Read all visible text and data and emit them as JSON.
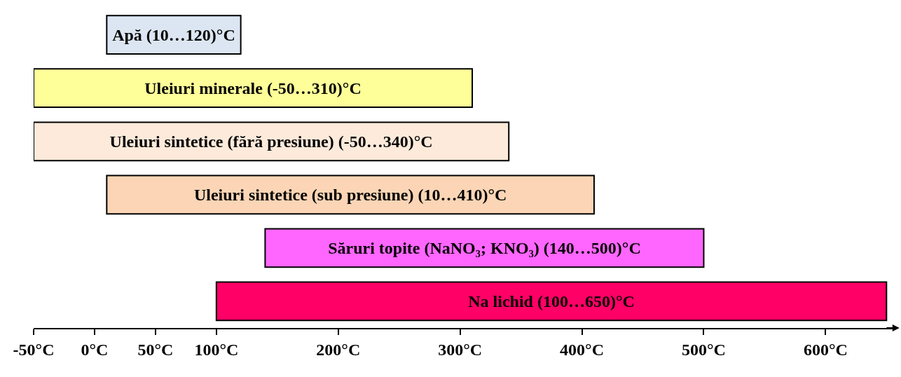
{
  "chart_data": {
    "type": "bar",
    "orientation": "horizontal",
    "categories": [
      "Apă (10…120)°C",
      "Uleiuri minerale (-50…310)°C",
      "Uleiuri sintetice (fără presiune) (-50…340)°C",
      "Uleiuri sintetice (sub presiune) (10…410)°C",
      "Săruri topite (NaNO₃; KNO₃) (140…500)°C",
      "Na lichid (100…650)°C"
    ],
    "base": [
      10,
      -50,
      -50,
      10,
      140,
      100
    ],
    "values": [
      110,
      360,
      390,
      400,
      360,
      550
    ],
    "colors": [
      "#dce6f2",
      "#ffff99",
      "#fdeada",
      "#fbd5b5",
      "#ff66ff",
      "#ff0066"
    ],
    "xlim": [
      -50,
      655
    ],
    "xticks": [
      {
        "value": -50,
        "label": "-50°C"
      },
      {
        "value": 0,
        "label": "0°C"
      },
      {
        "value": 50,
        "label": "50°C"
      },
      {
        "value": 100,
        "label": "100°C"
      },
      {
        "value": 200,
        "label": "200°C"
      },
      {
        "value": 300,
        "label": "300°C"
      },
      {
        "value": 400,
        "label": "400°C"
      },
      {
        "value": 500,
        "label": "500°C"
      },
      {
        "value": 600,
        "label": "600°C"
      }
    ],
    "tick_labels": "x"
  }
}
